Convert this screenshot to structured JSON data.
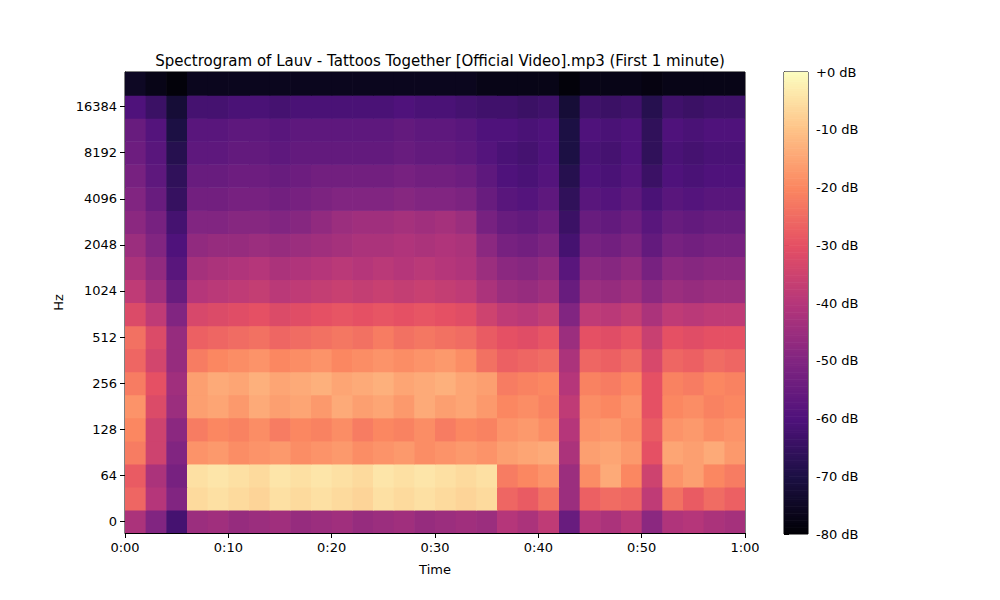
{
  "chart_data": {
    "type": "heatmap",
    "title": "Spectrogram of Lauv - Tattoos Together [Official Video].mp3 (First 1 minute)",
    "x_label": "Time",
    "y_label": "Hz",
    "x_bins": [
      0,
      2,
      4,
      6,
      8,
      10,
      12,
      14,
      16,
      18,
      20,
      22,
      24,
      26,
      28,
      30,
      32,
      34,
      36,
      38,
      40,
      42,
      44,
      46,
      48,
      50,
      52,
      54,
      56,
      58,
      60
    ],
    "xlim": [
      0,
      60
    ],
    "xticks": [
      {
        "value": 0,
        "label": "0:00"
      },
      {
        "value": 10,
        "label": "0:10"
      },
      {
        "value": 20,
        "label": "0:20"
      },
      {
        "value": 30,
        "label": "0:30"
      },
      {
        "value": 40,
        "label": "0:40"
      },
      {
        "value": 50,
        "label": "0:50"
      },
      {
        "value": 60,
        "label": "1:00"
      }
    ],
    "y_categories": [
      "0",
      null,
      "64",
      null,
      "128",
      null,
      "256",
      null,
      "512",
      null,
      "1024",
      null,
      "2048",
      null,
      "4096",
      null,
      "8192",
      null,
      "16384",
      null
    ],
    "cells": [
      [
        -42,
        -50,
        -62,
        -45,
        -44,
        -46,
        -45,
        -44,
        -46,
        -45,
        -44,
        -46,
        -45,
        -44,
        -46,
        -45,
        -44,
        -45,
        -40,
        -42,
        -38,
        -55,
        -40,
        -42,
        -39,
        -48,
        -41,
        -40,
        -42,
        -43
      ],
      [
        -26,
        -40,
        -50,
        -6,
        -5,
        -6,
        -7,
        -5,
        -6,
        -5,
        -6,
        -7,
        -5,
        -6,
        -5,
        -6,
        -7,
        -6,
        -26,
        -28,
        -24,
        -45,
        -27,
        -25,
        -26,
        -38,
        -24,
        -28,
        -25,
        -27
      ],
      [
        -28,
        -42,
        -52,
        -5,
        -4,
        -5,
        -6,
        -4,
        -5,
        -4,
        -5,
        -6,
        -4,
        -5,
        -4,
        -5,
        -6,
        -5,
        -22,
        -20,
        -18,
        -45,
        -19,
        -14,
        -20,
        -35,
        -18,
        -16,
        -20,
        -22
      ],
      [
        -22,
        -35,
        -50,
        -18,
        -17,
        -19,
        -18,
        -17,
        -19,
        -18,
        -17,
        -19,
        -18,
        -17,
        -19,
        -18,
        -17,
        -18,
        -16,
        -15,
        -14,
        -42,
        -16,
        -15,
        -17,
        -30,
        -15,
        -16,
        -14,
        -17
      ],
      [
        -20,
        -35,
        -48,
        -22,
        -20,
        -21,
        -19,
        -22,
        -20,
        -21,
        -19,
        -22,
        -20,
        -21,
        -19,
        -22,
        -20,
        -21,
        -18,
        -17,
        -19,
        -40,
        -18,
        -17,
        -19,
        -28,
        -18,
        -17,
        -19,
        -18
      ],
      [
        -18,
        -32,
        -45,
        -16,
        -15,
        -17,
        -14,
        -16,
        -15,
        -17,
        -14,
        -16,
        -15,
        -17,
        -14,
        -16,
        -15,
        -17,
        -20,
        -19,
        -21,
        -38,
        -19,
        -20,
        -18,
        -30,
        -20,
        -19,
        -21,
        -20
      ],
      [
        -22,
        -30,
        -44,
        -16,
        -14,
        -15,
        -13,
        -15,
        -14,
        -13,
        -15,
        -14,
        -13,
        -15,
        -14,
        -13,
        -15,
        -16,
        -22,
        -21,
        -20,
        -40,
        -21,
        -22,
        -20,
        -30,
        -21,
        -22,
        -20,
        -21
      ],
      [
        -26,
        -34,
        -46,
        -22,
        -20,
        -19,
        -18,
        -20,
        -19,
        -18,
        -20,
        -19,
        -18,
        -19,
        -18,
        -17,
        -19,
        -24,
        -27,
        -26,
        -25,
        -42,
        -26,
        -27,
        -25,
        -33,
        -26,
        -27,
        -25,
        -26
      ],
      [
        -24,
        -32,
        -46,
        -27,
        -26,
        -25,
        -24,
        -26,
        -25,
        -24,
        -23,
        -24,
        -22,
        -24,
        -23,
        -24,
        -25,
        -28,
        -30,
        -31,
        -29,
        -45,
        -30,
        -31,
        -29,
        -36,
        -30,
        -31,
        -30,
        -30
      ],
      [
        -32,
        -38,
        -50,
        -33,
        -32,
        -31,
        -30,
        -32,
        -31,
        -30,
        -29,
        -30,
        -29,
        -30,
        -29,
        -30,
        -31,
        -35,
        -38,
        -39,
        -37,
        -50,
        -38,
        -39,
        -37,
        -42,
        -38,
        -39,
        -38,
        -38
      ],
      [
        -38,
        -44,
        -55,
        -40,
        -39,
        -38,
        -37,
        -39,
        -38,
        -37,
        -36,
        -37,
        -36,
        -37,
        -36,
        -37,
        -38,
        -42,
        -45,
        -46,
        -44,
        -55,
        -45,
        -46,
        -44,
        -48,
        -45,
        -46,
        -45,
        -45
      ],
      [
        -42,
        -47,
        -58,
        -43,
        -42,
        -41,
        -40,
        -42,
        -41,
        -40,
        -39,
        -40,
        -39,
        -40,
        -39,
        -40,
        -41,
        -45,
        -48,
        -49,
        -47,
        -58,
        -48,
        -49,
        -47,
        -52,
        -48,
        -49,
        -48,
        -48
      ],
      [
        -45,
        -50,
        -60,
        -47,
        -46,
        -46,
        -45,
        -46,
        -45,
        -44,
        -43,
        -42,
        -42,
        -41,
        -42,
        -41,
        -42,
        -48,
        -52,
        -53,
        -51,
        -62,
        -52,
        -53,
        -51,
        -56,
        -52,
        -53,
        -52,
        -52
      ],
      [
        -48,
        -52,
        -62,
        -50,
        -50,
        -49,
        -49,
        -50,
        -49,
        -47,
        -45,
        -44,
        -44,
        -43,
        -44,
        -43,
        -45,
        -52,
        -55,
        -56,
        -54,
        -64,
        -55,
        -56,
        -54,
        -58,
        -55,
        -56,
        -55,
        -55
      ],
      [
        -50,
        -55,
        -65,
        -53,
        -53,
        -52,
        -52,
        -53,
        -52,
        -51,
        -50,
        -50,
        -50,
        -49,
        -50,
        -50,
        -51,
        -55,
        -58,
        -59,
        -57,
        -66,
        -58,
        -59,
        -57,
        -61,
        -58,
        -59,
        -58,
        -58
      ],
      [
        -52,
        -57,
        -66,
        -55,
        -55,
        -54,
        -54,
        -55,
        -54,
        -53,
        -53,
        -53,
        -53,
        -52,
        -53,
        -53,
        -54,
        -57,
        -60,
        -61,
        -59,
        -68,
        -60,
        -61,
        -59,
        -64,
        -60,
        -61,
        -60,
        -60
      ],
      [
        -54,
        -58,
        -68,
        -57,
        -57,
        -56,
        -56,
        -57,
        -56,
        -56,
        -56,
        -56,
        -56,
        -55,
        -56,
        -56,
        -57,
        -59,
        -61,
        -62,
        -60,
        -70,
        -61,
        -62,
        -60,
        -66,
        -61,
        -62,
        -61,
        -61
      ],
      [
        -55,
        -59,
        -70,
        -58,
        -58,
        -57,
        -57,
        -58,
        -57,
        -57,
        -57,
        -57,
        -57,
        -56,
        -57,
        -57,
        -58,
        -60,
        -60,
        -61,
        -60,
        -70,
        -60,
        -61,
        -60,
        -66,
        -60,
        -61,
        -60,
        -60
      ],
      [
        -60,
        -64,
        -72,
        -62,
        -62,
        -61,
        -61,
        -62,
        -61,
        -61,
        -61,
        -61,
        -61,
        -60,
        -61,
        -61,
        -62,
        -63,
        -63,
        -64,
        -63,
        -72,
        -63,
        -64,
        -63,
        -68,
        -63,
        -64,
        -63,
        -63
      ],
      [
        -75,
        -77,
        -79,
        -76,
        -76,
        -76,
        -76,
        -76,
        -76,
        -76,
        -76,
        -76,
        -76,
        -76,
        -76,
        -76,
        -76,
        -77,
        -77,
        -77,
        -77,
        -79,
        -77,
        -77,
        -77,
        -78,
        -77,
        -77,
        -77,
        -77
      ]
    ],
    "zlim": [
      -80,
      0
    ],
    "zticks": [
      {
        "value": 0,
        "label": "+0 dB"
      },
      {
        "value": -10,
        "label": "-10 dB"
      },
      {
        "value": -20,
        "label": "-20 dB"
      },
      {
        "value": -30,
        "label": "-30 dB"
      },
      {
        "value": -40,
        "label": "-40 dB"
      },
      {
        "value": -50,
        "label": "-50 dB"
      },
      {
        "value": -60,
        "label": "-60 dB"
      },
      {
        "value": -70,
        "label": "-70 dB"
      },
      {
        "value": -80,
        "label": "-80 dB"
      }
    ]
  }
}
